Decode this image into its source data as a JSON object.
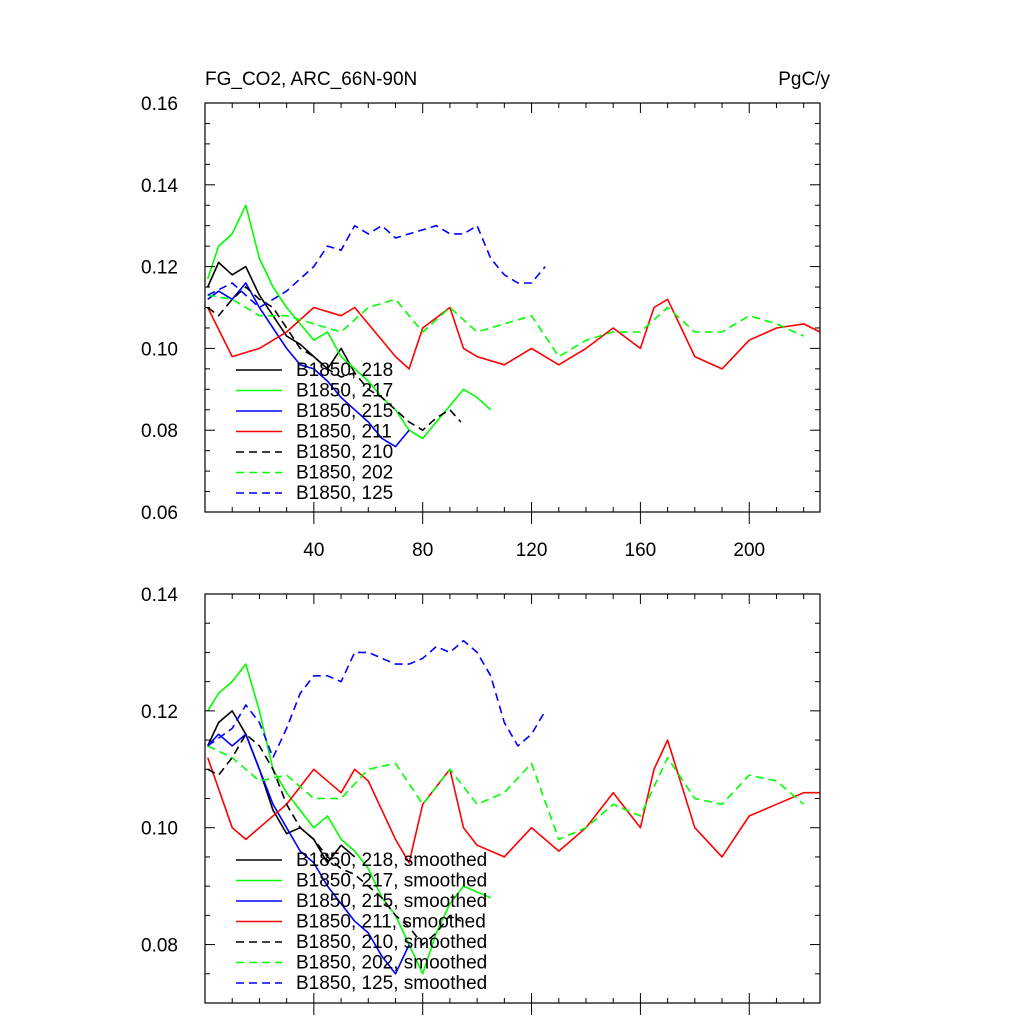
{
  "chart_data": [
    {
      "type": "line",
      "title_left": "FG_CO2, ARC_66N-90N",
      "title_right": "PgC/y",
      "xlabel": "",
      "ylabel": "",
      "xlim": [
        0,
        226
      ],
      "ylim": [
        0.06,
        0.16
      ],
      "xticks": [
        40,
        80,
        120,
        160,
        200
      ],
      "yticks": [
        0.06,
        0.08,
        0.1,
        0.12,
        0.14,
        0.16
      ],
      "xtick_labels": [
        "40",
        "80",
        "120",
        "160",
        "200"
      ],
      "ytick_labels": [
        "0.06",
        "0.08",
        "0.10",
        "0.12",
        "0.14",
        "0.16"
      ],
      "grid": false,
      "legend_position": "lower-left",
      "series": [
        {
          "name": "B1850, 218",
          "color": "#000000",
          "dash": "solid",
          "x": [
            1,
            5,
            10,
            15,
            20,
            25,
            30,
            35,
            40,
            45,
            50,
            55
          ],
          "y": [
            0.115,
            0.121,
            0.118,
            0.12,
            0.113,
            0.108,
            0.103,
            0.101,
            0.098,
            0.095,
            0.1,
            0.094
          ]
        },
        {
          "name": "B1850, 217",
          "color": "#00ff00",
          "dash": "solid",
          "x": [
            1,
            5,
            10,
            15,
            20,
            25,
            30,
            35,
            40,
            45,
            50,
            55,
            60,
            65,
            70,
            75,
            80,
            85,
            90,
            95,
            100,
            105
          ],
          "y": [
            0.117,
            0.125,
            0.128,
            0.135,
            0.122,
            0.115,
            0.11,
            0.106,
            0.102,
            0.104,
            0.098,
            0.095,
            0.092,
            0.088,
            0.085,
            0.08,
            0.078,
            0.082,
            0.086,
            0.09,
            0.088,
            0.085
          ]
        },
        {
          "name": "B1850, 215",
          "color": "#0000ff",
          "dash": "solid",
          "x": [
            1,
            5,
            10,
            15,
            20,
            25,
            30,
            35,
            40,
            45,
            50,
            55,
            60,
            65,
            70,
            75
          ],
          "y": [
            0.112,
            0.114,
            0.112,
            0.116,
            0.11,
            0.105,
            0.1,
            0.096,
            0.095,
            0.092,
            0.088,
            0.085,
            0.082,
            0.078,
            0.076,
            0.08
          ]
        },
        {
          "name": "B1850, 211",
          "color": "#ff0000",
          "dash": "solid",
          "x": [
            1,
            10,
            20,
            30,
            40,
            50,
            55,
            60,
            70,
            75,
            80,
            90,
            95,
            100,
            110,
            120,
            130,
            140,
            150,
            160,
            165,
            170,
            180,
            190,
            200,
            210,
            220,
            226
          ],
          "y": [
            0.11,
            0.098,
            0.1,
            0.104,
            0.11,
            0.108,
            0.11,
            0.106,
            0.098,
            0.095,
            0.105,
            0.11,
            0.1,
            0.098,
            0.096,
            0.1,
            0.096,
            0.1,
            0.105,
            0.1,
            0.11,
            0.112,
            0.098,
            0.095,
            0.102,
            0.105,
            0.106,
            0.104
          ]
        },
        {
          "name": "B1850, 210",
          "color": "#000000",
          "dash": "dashed",
          "x": [
            1,
            5,
            10,
            15,
            20,
            25,
            30,
            35,
            40,
            45,
            50,
            55,
            60,
            65,
            70,
            75,
            80,
            85,
            90,
            94
          ],
          "y": [
            0.11,
            0.108,
            0.112,
            0.115,
            0.112,
            0.11,
            0.105,
            0.1,
            0.098,
            0.095,
            0.093,
            0.094,
            0.09,
            0.088,
            0.085,
            0.082,
            0.08,
            0.083,
            0.085,
            0.082
          ]
        },
        {
          "name": "B1850, 202",
          "color": "#00ff00",
          "dash": "dashed",
          "x": [
            1,
            10,
            20,
            30,
            40,
            50,
            60,
            70,
            80,
            90,
            100,
            110,
            120,
            130,
            140,
            150,
            160,
            170,
            180,
            190,
            200,
            210,
            220
          ],
          "y": [
            0.113,
            0.112,
            0.108,
            0.108,
            0.106,
            0.104,
            0.11,
            0.112,
            0.104,
            0.11,
            0.104,
            0.106,
            0.108,
            0.098,
            0.102,
            0.104,
            0.104,
            0.11,
            0.104,
            0.104,
            0.108,
            0.106,
            0.103
          ]
        },
        {
          "name": "B1850, 125",
          "color": "#0000ff",
          "dash": "dashed",
          "x": [
            1,
            10,
            20,
            30,
            40,
            45,
            50,
            55,
            60,
            65,
            70,
            75,
            80,
            85,
            90,
            95,
            100,
            105,
            110,
            115,
            120,
            125
          ],
          "y": [
            0.113,
            0.116,
            0.11,
            0.114,
            0.12,
            0.125,
            0.124,
            0.13,
            0.128,
            0.13,
            0.127,
            0.128,
            0.129,
            0.13,
            0.128,
            0.128,
            0.13,
            0.122,
            0.118,
            0.116,
            0.116,
            0.12
          ]
        }
      ]
    },
    {
      "type": "line",
      "xlim": [
        0,
        226
      ],
      "ylim": [
        0.07,
        0.14
      ],
      "xticks": [
        40,
        80,
        120,
        160,
        200
      ],
      "yticks": [
        0.08,
        0.1,
        0.12,
        0.14
      ],
      "ytick_labels": [
        "0.08",
        "0.10",
        "0.12",
        "0.14"
      ],
      "grid": false,
      "legend_position": "lower-left",
      "series": [
        {
          "name": "B1850, 218, smoothed",
          "color": "#000000",
          "dash": "solid",
          "x": [
            1,
            5,
            10,
            15,
            20,
            25,
            30,
            35,
            40,
            45,
            50,
            55
          ],
          "y": [
            0.114,
            0.118,
            0.12,
            0.116,
            0.11,
            0.103,
            0.099,
            0.1,
            0.098,
            0.094,
            0.097,
            0.095
          ]
        },
        {
          "name": "B1850, 217, smoothed",
          "color": "#00ff00",
          "dash": "solid",
          "x": [
            1,
            5,
            10,
            15,
            20,
            25,
            30,
            35,
            40,
            45,
            50,
            55,
            60,
            65,
            70,
            75,
            80,
            85,
            90,
            95,
            100,
            105
          ],
          "y": [
            0.12,
            0.123,
            0.125,
            0.128,
            0.12,
            0.11,
            0.106,
            0.103,
            0.1,
            0.102,
            0.098,
            0.096,
            0.093,
            0.088,
            0.085,
            0.08,
            0.075,
            0.082,
            0.087,
            0.09,
            0.089,
            0.088
          ]
        },
        {
          "name": "B1850, 215, smoothed",
          "color": "#0000ff",
          "dash": "solid",
          "x": [
            1,
            5,
            10,
            15,
            20,
            25,
            30,
            35,
            40,
            45,
            50,
            55,
            60,
            65,
            70,
            75
          ],
          "y": [
            0.114,
            0.116,
            0.114,
            0.116,
            0.11,
            0.104,
            0.1,
            0.096,
            0.094,
            0.09,
            0.087,
            0.084,
            0.082,
            0.078,
            0.075,
            0.08
          ]
        },
        {
          "name": "B1850, 211, smoothed",
          "color": "#ff0000",
          "dash": "solid",
          "x": [
            1,
            10,
            15,
            20,
            30,
            40,
            50,
            55,
            60,
            70,
            75,
            80,
            90,
            95,
            100,
            110,
            120,
            130,
            140,
            150,
            160,
            165,
            170,
            180,
            190,
            200,
            210,
            220,
            226
          ],
          "y": [
            0.112,
            0.1,
            0.098,
            0.1,
            0.104,
            0.11,
            0.106,
            0.11,
            0.108,
            0.098,
            0.094,
            0.104,
            0.11,
            0.1,
            0.097,
            0.095,
            0.1,
            0.096,
            0.1,
            0.106,
            0.1,
            0.11,
            0.115,
            0.1,
            0.095,
            0.102,
            0.104,
            0.106,
            0.106
          ]
        },
        {
          "name": "B1850, 210, smoothed",
          "color": "#000000",
          "dash": "dashed",
          "x": [
            1,
            5,
            10,
            15,
            20,
            25,
            30,
            35,
            40,
            45,
            50,
            55,
            60,
            65,
            70,
            75,
            80,
            85,
            90,
            94
          ],
          "y": [
            0.11,
            0.109,
            0.112,
            0.116,
            0.114,
            0.11,
            0.104,
            0.1,
            0.098,
            0.095,
            0.093,
            0.092,
            0.09,
            0.088,
            0.085,
            0.083,
            0.08,
            0.082,
            0.085,
            0.084
          ]
        },
        {
          "name": "B1850, 202, smoothed",
          "color": "#00ff00",
          "dash": "dashed",
          "x": [
            1,
            10,
            20,
            30,
            40,
            50,
            60,
            70,
            80,
            90,
            100,
            110,
            120,
            130,
            140,
            150,
            160,
            170,
            180,
            190,
            200,
            210,
            220
          ],
          "y": [
            0.114,
            0.112,
            0.108,
            0.109,
            0.105,
            0.105,
            0.11,
            0.111,
            0.104,
            0.11,
            0.104,
            0.106,
            0.111,
            0.098,
            0.1,
            0.104,
            0.102,
            0.112,
            0.105,
            0.104,
            0.109,
            0.108,
            0.104
          ]
        },
        {
          "name": "B1850, 125, smoothed",
          "color": "#0000ff",
          "dash": "dashed",
          "x": [
            1,
            10,
            15,
            20,
            25,
            30,
            35,
            40,
            45,
            50,
            55,
            60,
            65,
            70,
            75,
            80,
            85,
            90,
            95,
            100,
            105,
            110,
            115,
            120,
            125
          ],
          "y": [
            0.114,
            0.117,
            0.121,
            0.118,
            0.112,
            0.117,
            0.123,
            0.126,
            0.126,
            0.125,
            0.13,
            0.13,
            0.129,
            0.128,
            0.128,
            0.129,
            0.131,
            0.13,
            0.132,
            0.13,
            0.126,
            0.118,
            0.114,
            0.116,
            0.12
          ]
        }
      ]
    }
  ]
}
